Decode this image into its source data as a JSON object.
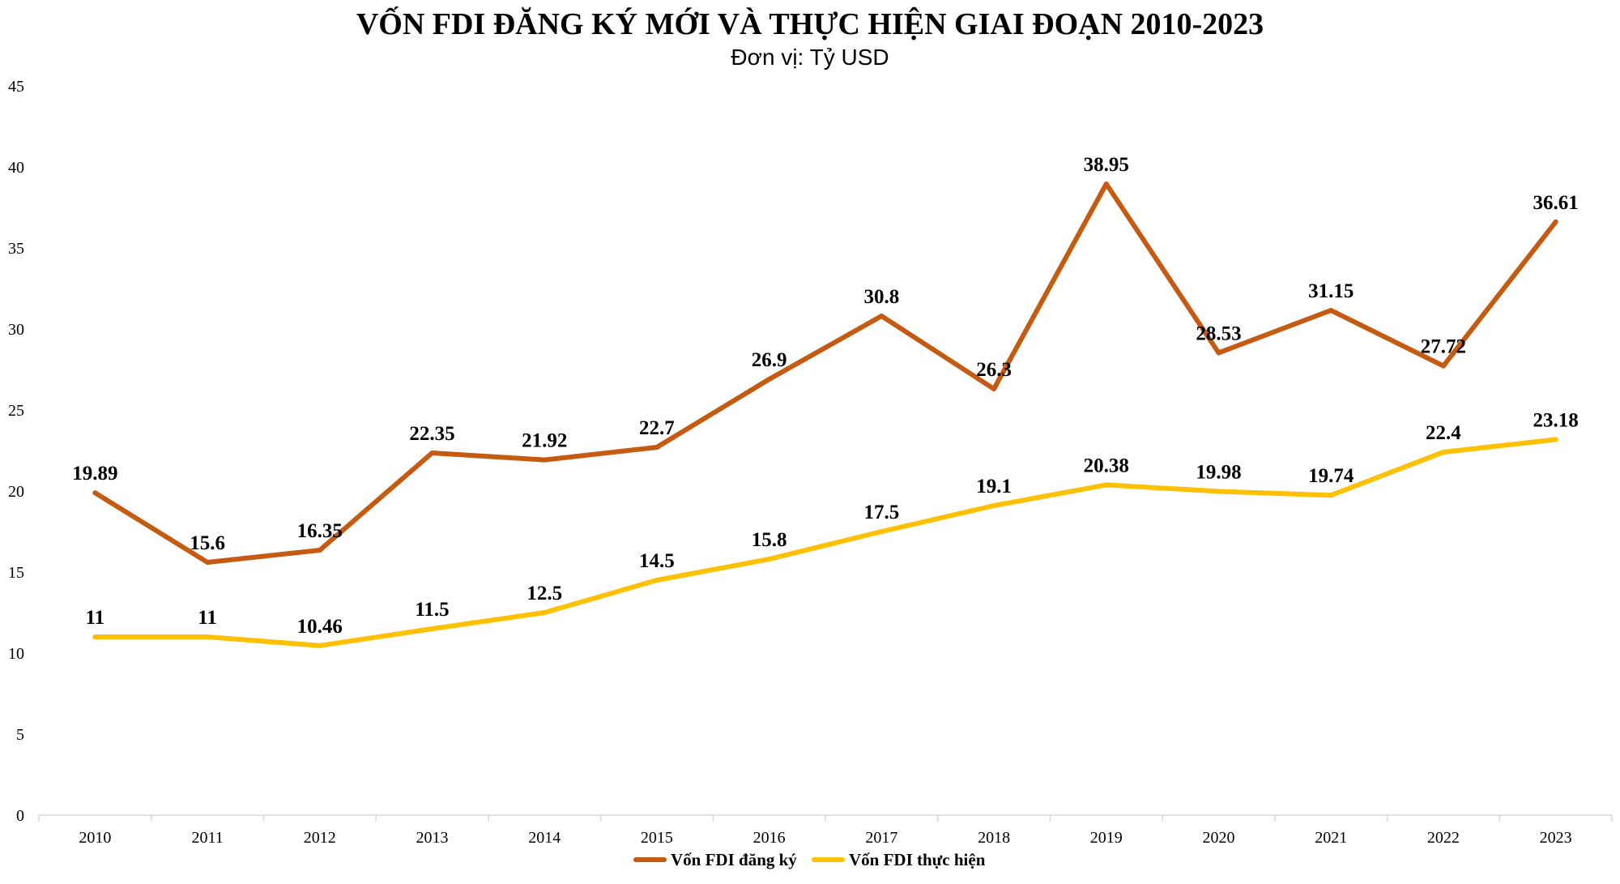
{
  "chart_data": {
    "type": "line",
    "title": "VỐN FDI ĐĂNG KÝ MỚI VÀ THỰC HIỆN GIAI ĐOẠN 2010-2023",
    "subtitle": "Đơn vị: Tỷ USD",
    "categories": [
      "2010",
      "2011",
      "2012",
      "2013",
      "2014",
      "2015",
      "2016",
      "2017",
      "2018",
      "2019",
      "2020",
      "2021",
      "2022",
      "2023"
    ],
    "ylim": [
      0,
      45
    ],
    "yticks": [
      "0",
      "5",
      "10",
      "15",
      "20",
      "25",
      "30",
      "35",
      "40",
      "45"
    ],
    "grid": false,
    "legend_position": "bottom",
    "series": [
      {
        "name": "Vốn FDI đăng ký",
        "color": "#C55A11",
        "values": [
          19.89,
          15.6,
          16.35,
          22.35,
          21.92,
          22.7,
          26.9,
          30.8,
          26.3,
          38.95,
          28.53,
          31.15,
          27.72,
          36.61
        ],
        "labels": [
          "19.89",
          "15.6",
          "16.35",
          "22.35",
          "21.92",
          "22.7",
          "26.9",
          "30.8",
          "26.3",
          "38.95",
          "28.53",
          "31.15",
          "27.72",
          "36.61"
        ]
      },
      {
        "name": "Vốn FDI thực hiện",
        "color": "#FFC000",
        "values": [
          11,
          11,
          10.46,
          11.5,
          12.5,
          14.5,
          15.8,
          17.5,
          19.1,
          20.38,
          19.98,
          19.74,
          22.4,
          23.18
        ],
        "labels": [
          "11",
          "11",
          "10.46",
          "11.5",
          "12.5",
          "14.5",
          "15.8",
          "17.5",
          "19.1",
          "20.38",
          "19.98",
          "19.74",
          "22.4",
          "23.18"
        ]
      }
    ]
  }
}
